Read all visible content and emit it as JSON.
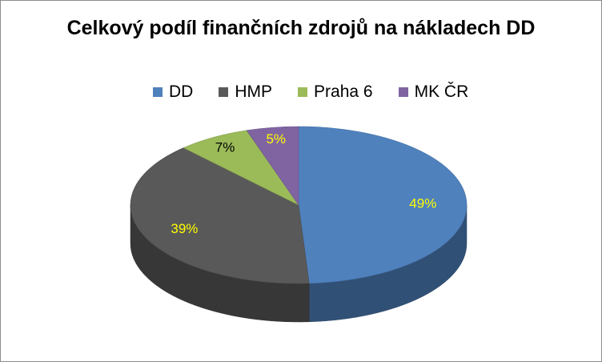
{
  "chart_data": {
    "type": "pie",
    "title": "Celkový podíl finančních zdrojů na nákladech DD",
    "categories": [
      "DD",
      "HMP",
      "Praha 6",
      "MK ČR"
    ],
    "values": [
      49,
      39,
      7,
      5
    ],
    "data_labels": [
      "49%",
      "39%",
      "7%",
      "5%"
    ],
    "colors": [
      "#4f81bd",
      "#595959",
      "#9bbb59",
      "#8064a2"
    ],
    "legend_position": "top",
    "style": "3d"
  }
}
